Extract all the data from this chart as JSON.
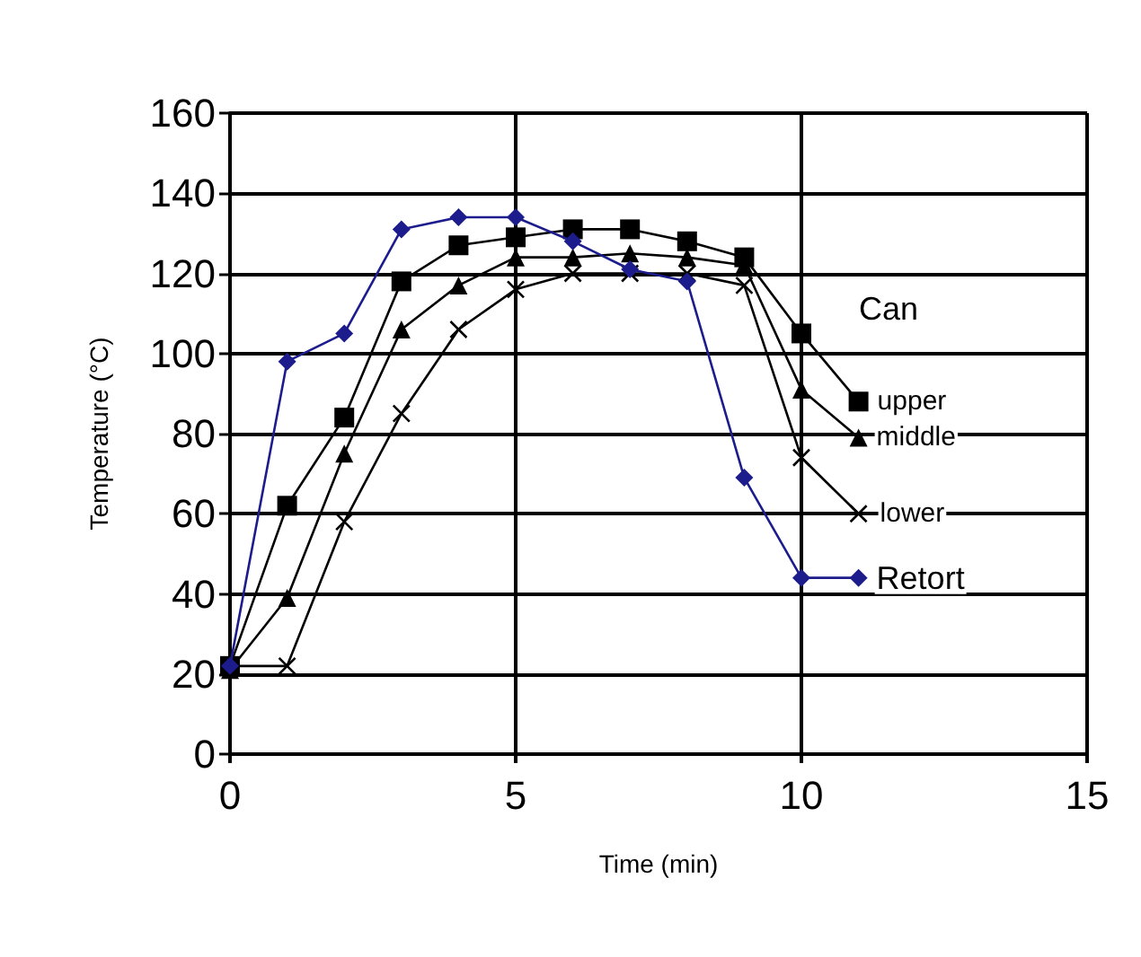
{
  "chart_data": {
    "type": "line",
    "xlabel": "Time (min)",
    "ylabel": "Temperature (°C)",
    "x": [
      0,
      1,
      2,
      3,
      4,
      5,
      6,
      7,
      8,
      9,
      10,
      11
    ],
    "xlim": [
      0,
      15
    ],
    "xticks": [
      0,
      5,
      10,
      15
    ],
    "ylim": [
      0,
      160
    ],
    "yticks": [
      0,
      20,
      40,
      60,
      80,
      100,
      120,
      140,
      160
    ],
    "grid": true,
    "legend": false,
    "annotations": [
      "Can"
    ],
    "series": [
      {
        "name": "upper",
        "color": "#000000",
        "marker": "square",
        "values": [
          22,
          62,
          84,
          118,
          127,
          129,
          131,
          131,
          128,
          124,
          105,
          88
        ]
      },
      {
        "name": "middle",
        "color": "#000000",
        "marker": "triangle",
        "values": [
          21,
          39,
          75,
          106,
          117,
          124,
          124,
          125,
          124,
          122,
          91,
          79
        ]
      },
      {
        "name": "lower",
        "color": "#000000",
        "marker": "cross",
        "values": [
          22,
          22,
          58,
          85,
          106,
          116,
          120,
          120,
          120,
          117,
          74,
          60
        ]
      },
      {
        "name": "Retort",
        "color": "#1c1c8c",
        "marker": "diamond",
        "values": [
          22,
          98,
          105,
          131,
          134,
          134,
          128,
          121,
          118,
          69,
          44,
          44
        ]
      }
    ]
  }
}
